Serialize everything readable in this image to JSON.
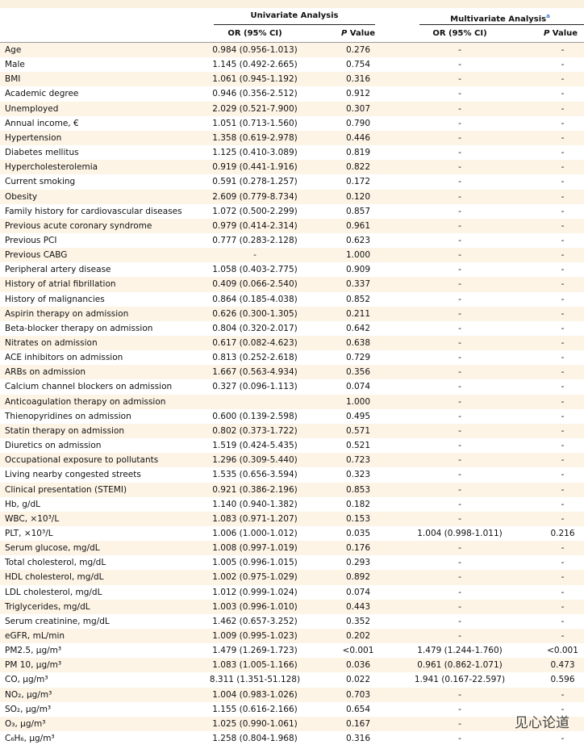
{
  "header": {
    "groups": [
      "Univariate Analysis",
      {
        "text": "Multivariate Analysis",
        "sup": "a"
      }
    ],
    "columns": [
      "OR (95% CI)",
      {
        "italic": "P",
        "text": "Value"
      },
      "OR (95% CI)",
      {
        "italic": "P",
        "text": "Value"
      }
    ]
  },
  "table": {
    "rows": [
      [
        "Age",
        "0.984 (0.956-1.013)",
        "0.276",
        "-",
        "-"
      ],
      [
        "Male",
        "1.145 (0.492-2.665)",
        "0.754",
        "-",
        "-"
      ],
      [
        "BMI",
        "1.061 (0.945-1.192)",
        "0.316",
        "-",
        "-"
      ],
      [
        "Academic degree",
        "0.946 (0.356-2.512)",
        "0.912",
        "-",
        "-"
      ],
      [
        "Unemployed",
        "2.029 (0.521-7.900)",
        "0.307",
        "-",
        "-"
      ],
      [
        "Annual income, €",
        "1.051 (0.713-1.560)",
        "0.790",
        "-",
        "-"
      ],
      [
        "Hypertension",
        "1.358 (0.619-2.978)",
        "0.446",
        "-",
        "-"
      ],
      [
        "Diabetes mellitus",
        "1.125 (0.410-3.089)",
        "0.819",
        "-",
        "-"
      ],
      [
        "Hypercholesterolemia",
        "0.919 (0.441-1.916)",
        "0.822",
        "-",
        "-"
      ],
      [
        "Current smoking",
        "0.591 (0.278-1.257)",
        "0.172",
        "-",
        "-"
      ],
      [
        "Obesity",
        "2.609 (0.779-8.734)",
        "0.120",
        "-",
        "-"
      ],
      [
        "Family history for cardiovascular diseases",
        "1.072 (0.500-2.299)",
        "0.857",
        "-",
        "-"
      ],
      [
        "Previous acute coronary syndrome",
        "0.979 (0.414-2.314)",
        "0.961",
        "-",
        "-"
      ],
      [
        "Previous PCI",
        "0.777 (0.283-2.128)",
        "0.623",
        "-",
        "-"
      ],
      [
        "Previous CABG",
        "-",
        "1.000",
        "-",
        "-"
      ],
      [
        "Peripheral artery disease",
        "1.058 (0.403-2.775)",
        "0.909",
        "-",
        "-"
      ],
      [
        "History of atrial fibrillation",
        "0.409 (0.066-2.540)",
        "0.337",
        "-",
        "-"
      ],
      [
        "History of malignancies",
        "0.864 (0.185-4.038)",
        "0.852",
        "-",
        "-"
      ],
      [
        "Aspirin therapy on admission",
        "0.626 (0.300-1.305)",
        "0.211",
        "-",
        "-"
      ],
      [
        "Beta-blocker therapy on admission",
        "0.804 (0.320-2.017)",
        "0.642",
        "-",
        "-"
      ],
      [
        "Nitrates on admission",
        "0.617 (0.082-4.623)",
        "0.638",
        "-",
        "-"
      ],
      [
        "ACE inhibitors on admission",
        "0.813 (0.252-2.618)",
        "0.729",
        "-",
        "-"
      ],
      [
        "ARBs on admission",
        "1.667 (0.563-4.934)",
        "0.356",
        "-",
        "-"
      ],
      [
        "Calcium channel blockers on admission",
        "0.327 (0.096-1.113)",
        "0.074",
        "-",
        "-"
      ],
      [
        "Anticoagulation therapy on admission",
        null,
        "1.000",
        "-",
        "-"
      ],
      [
        "Thienopyridines on admission",
        "0.600 (0.139-2.598)",
        "0.495",
        "-",
        "-"
      ],
      [
        "Statin therapy on admission",
        "0.802 (0.373-1.722)",
        "0.571",
        "-",
        "-"
      ],
      [
        "Diuretics on admission",
        "1.519 (0.424-5.435)",
        "0.521",
        "-",
        "-"
      ],
      [
        "Occupational exposure to pollutants",
        "1.296 (0.309-5.440)",
        "0.723",
        "-",
        "-"
      ],
      [
        "Living nearby congested streets",
        "1.535 (0.656-3.594)",
        "0.323",
        "-",
        "-"
      ],
      [
        "Clinical presentation (STEMI)",
        "0.921 (0.386-2.196)",
        "0.853",
        "-",
        "-"
      ],
      [
        "Hb, g/dL",
        "1.140 (0.940-1.382)",
        "0.182",
        "-",
        "-"
      ],
      [
        "WBC, ×10³/L",
        "1.083 (0.971-1.207)",
        "0.153",
        "-",
        "-"
      ],
      [
        "PLT, ×10³/L",
        "1.006 (1.000-1.012)",
        "0.035",
        "1.004 (0.998-1.011)",
        "0.216"
      ],
      [
        "Serum glucose, mg/dL",
        "1.008 (0.997-1.019)",
        "0.176",
        "-",
        "-"
      ],
      [
        "Total cholesterol, mg/dL",
        "1.005 (0.996-1.015)",
        "0.293",
        "-",
        "-"
      ],
      [
        "HDL cholesterol, mg/dL",
        "1.002 (0.975-1.029)",
        "0.892",
        "-",
        "-"
      ],
      [
        "LDL cholesterol, mg/dL",
        "1.012 (0.999-1.024)",
        "0.074",
        "-",
        "-"
      ],
      [
        "Triglycerides, mg/dL",
        "1.003 (0.996-1.010)",
        "0.443",
        "-",
        "-"
      ],
      [
        "Serum creatinine, mg/dL",
        "1.462 (0.657-3.252)",
        "0.352",
        "-",
        "-"
      ],
      [
        "eGFR, mL/min",
        "1.009 (0.995-1.023)",
        "0.202",
        "-",
        "-"
      ],
      [
        "PM2.5, μg/m³",
        "1.479 (1.269-1.723)",
        "<0.001",
        "1.479 (1.244-1.760)",
        "<0.001"
      ],
      [
        "PM 10, μg/m³",
        "1.083 (1.005-1.166)",
        "0.036",
        "0.961 (0.862-1.071)",
        "0.473"
      ],
      [
        "CO, μg/m³",
        "8.311 (1.351-51.128)",
        "0.022",
        "1.941 (0.167-22.597)",
        "0.596"
      ],
      [
        "NO₂, μg/m³",
        "1.004 (0.983-1.026)",
        "0.703",
        "-",
        "-"
      ],
      [
        "SO₂, μg/m³",
        "1.155 (0.616-2.166)",
        "0.654",
        "-",
        "-"
      ],
      [
        "O₃, μg/m³",
        "1.025 (0.990-1.061)",
        "0.167",
        "-",
        "-"
      ],
      [
        "C₆H₆, μg/m³",
        "1.258 (0.804-1.968)",
        "0.316",
        "-",
        "-"
      ]
    ]
  },
  "watermark": "见心论道"
}
